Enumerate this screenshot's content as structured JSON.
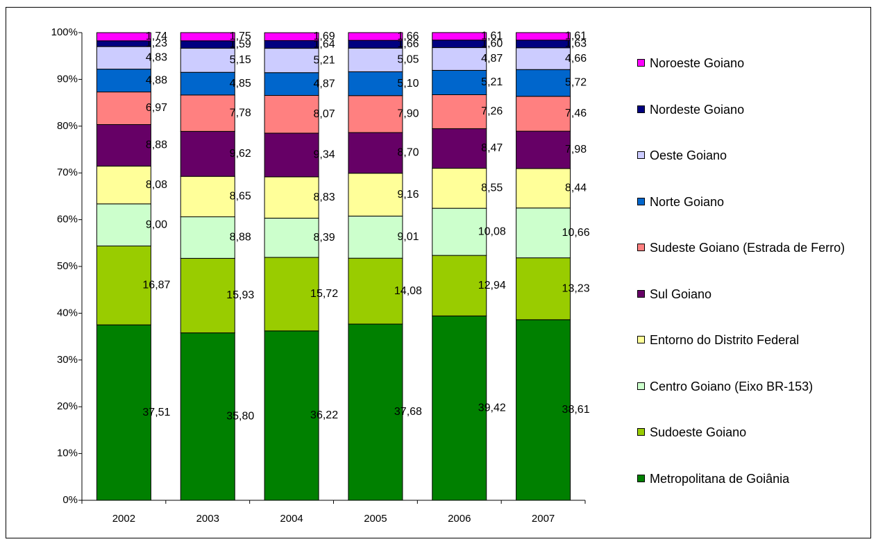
{
  "chart_data": {
    "type": "stacked_bar",
    "categories": [
      "2002",
      "2003",
      "2004",
      "2005",
      "2006",
      "2007"
    ],
    "ylim": [
      0,
      100
    ],
    "yticks": [
      {
        "value": 0,
        "label": "0%"
      },
      {
        "value": 10,
        "label": "10%"
      },
      {
        "value": 20,
        "label": "20%"
      },
      {
        "value": 30,
        "label": "30%"
      },
      {
        "value": 40,
        "label": "40%"
      },
      {
        "value": 50,
        "label": "50%"
      },
      {
        "value": 60,
        "label": "60%"
      },
      {
        "value": 70,
        "label": "70%"
      },
      {
        "value": 80,
        "label": "80%"
      },
      {
        "value": 90,
        "label": "90%"
      },
      {
        "value": 100,
        "label": "100%"
      }
    ],
    "legend": "right",
    "series": [
      {
        "name": "Metropolitana de Goiânia",
        "color": "#008000",
        "values": [
          37.51,
          35.8,
          36.22,
          37.68,
          39.42,
          38.61
        ],
        "value_labels": [
          "37,51",
          "35,80",
          "36,22",
          "37,68",
          "39,42",
          "38,61"
        ]
      },
      {
        "name": "Sudoeste Goiano",
        "color": "#99cc00",
        "values": [
          16.87,
          15.93,
          15.72,
          14.08,
          12.94,
          13.23
        ],
        "value_labels": [
          "16,87",
          "15,93",
          "15,72",
          "14,08",
          "12,94",
          "13,23"
        ]
      },
      {
        "name": "Centro Goiano (Eixo BR-153)",
        "color": "#ccffcc",
        "values": [
          9.0,
          8.88,
          8.39,
          9.01,
          10.08,
          10.66
        ],
        "value_labels": [
          "9,00",
          "8,88",
          "8,39",
          "9,01",
          "10,08",
          "10,66"
        ]
      },
      {
        "name": "Entorno do Distrito Federal",
        "color": "#ffff99",
        "values": [
          8.08,
          8.65,
          8.83,
          9.16,
          8.55,
          8.44
        ],
        "value_labels": [
          "8,08",
          "8,65",
          "8,83",
          "9,16",
          "8,55",
          "8,44"
        ]
      },
      {
        "name": "Sul Goiano",
        "color": "#660066",
        "values": [
          8.88,
          9.62,
          9.34,
          8.7,
          8.47,
          7.98
        ],
        "value_labels": [
          "8,88",
          "9,62",
          "9,34",
          "8,70",
          "8,47",
          "7,98"
        ]
      },
      {
        "name": "Sudeste Goiano (Estrada de Ferro)",
        "color": "#ff8080",
        "values": [
          6.97,
          7.78,
          8.07,
          7.9,
          7.26,
          7.46
        ],
        "value_labels": [
          "6,97",
          "7,78",
          "8,07",
          "7,90",
          "7,26",
          "7,46"
        ]
      },
      {
        "name": "Norte Goiano",
        "color": "#0066cc",
        "values": [
          4.88,
          4.85,
          4.87,
          5.1,
          5.21,
          5.72
        ],
        "value_labels": [
          "4,88",
          "4,85",
          "4,87",
          "5,10",
          "5,21",
          "5,72"
        ]
      },
      {
        "name": "Oeste Goiano",
        "color": "#ccccff",
        "values": [
          4.83,
          5.15,
          5.21,
          5.05,
          4.87,
          4.66
        ],
        "value_labels": [
          "4,83",
          "5,15",
          "5,21",
          "5,05",
          "4,87",
          "4,66"
        ]
      },
      {
        "name": "Nordeste Goiano",
        "color": "#000080",
        "values": [
          1.23,
          1.59,
          1.64,
          1.66,
          1.6,
          1.63
        ],
        "value_labels": [
          "1,23",
          "1,59",
          "1,64",
          "1,66",
          "1,60",
          "1,63"
        ]
      },
      {
        "name": "Noroeste Goiano",
        "color": "#ff00ff",
        "values": [
          1.74,
          1.75,
          1.69,
          1.66,
          1.61,
          1.61
        ],
        "value_labels": [
          "1,74",
          "1,75",
          "1,69",
          "1,66",
          "1,61",
          "1,61"
        ]
      }
    ]
  }
}
